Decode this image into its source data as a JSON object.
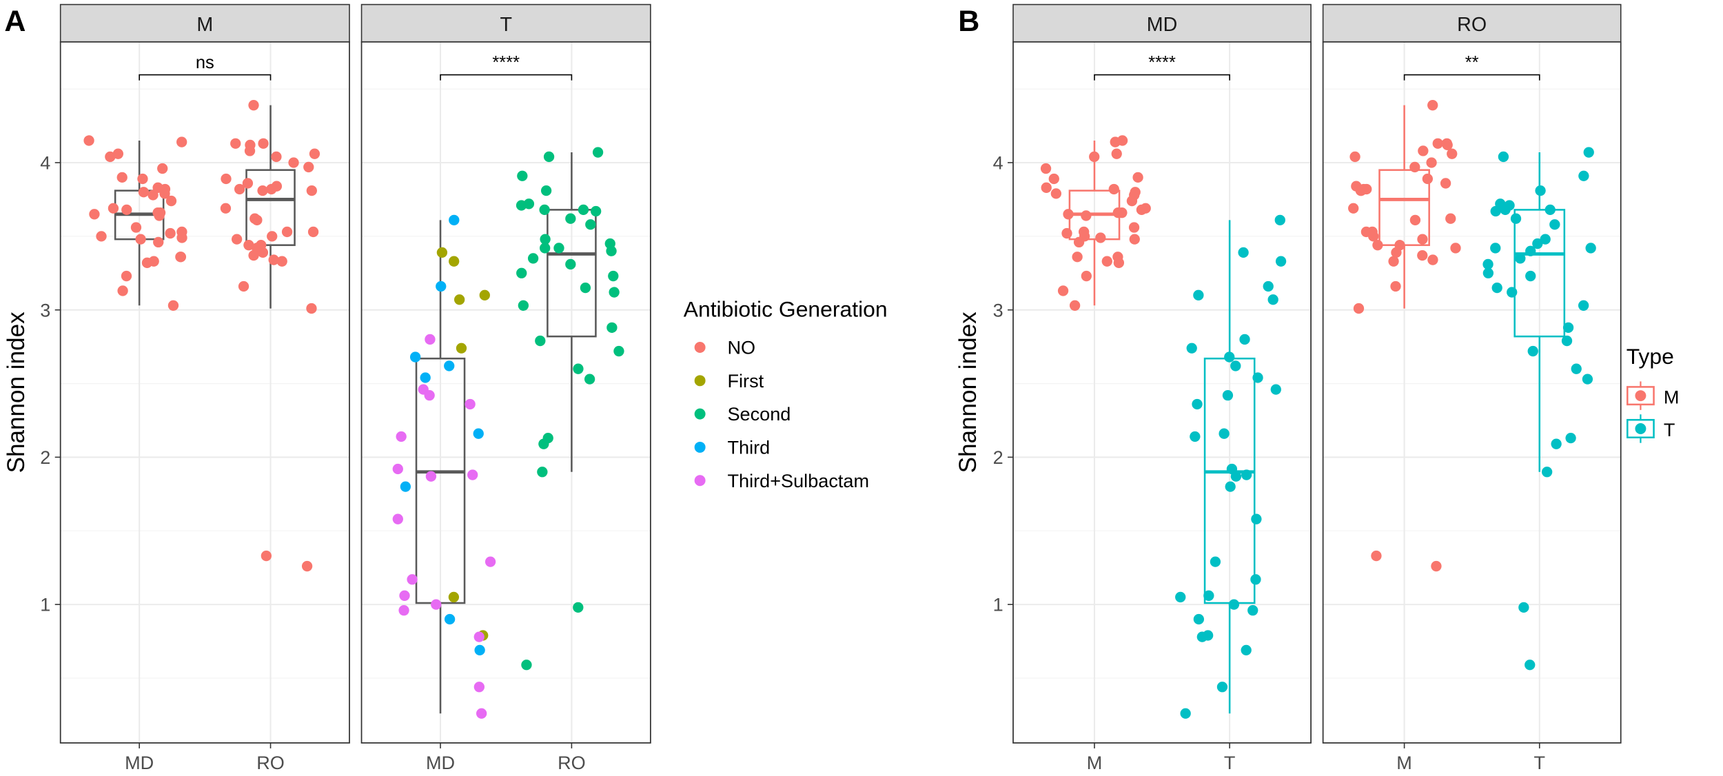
{
  "chart_data": [
    {
      "panel_tag": "A",
      "type": "boxplot+jitter",
      "ylabel": "Shannon index",
      "yticks": [
        1,
        2,
        3,
        4
      ],
      "ylim": [
        0.06,
        4.82
      ],
      "grid": true,
      "legend": {
        "title": "Antibiotic Generation",
        "placement": "right",
        "entries": [
          {
            "label": "NO",
            "color": "#F8766D"
          },
          {
            "label": "First",
            "color": "#A3A500"
          },
          {
            "label": "Second",
            "color": "#00BF7D"
          },
          {
            "label": "Third",
            "color": "#00B0F6"
          },
          {
            "label": "Third+Sulbactam",
            "color": "#E76BF3"
          }
        ]
      },
      "box_color": "#595959",
      "facets": [
        {
          "strip": "M",
          "categories": [
            "MD",
            "RO"
          ],
          "significance": "ns",
          "groups": [
            {
              "category": "MD",
              "box": {
                "lower_whisker": 3.03,
                "q1": 3.48,
                "median": 3.65,
                "q3": 3.81,
                "upper_whisker": 4.15
              },
              "points": [
                {
                  "v": 4.15,
                  "g": "NO"
                },
                {
                  "v": 4.14,
                  "g": "NO"
                },
                {
                  "v": 4.06,
                  "g": "NO"
                },
                {
                  "v": 4.04,
                  "g": "NO"
                },
                {
                  "v": 3.96,
                  "g": "NO"
                },
                {
                  "v": 3.89,
                  "g": "NO"
                },
                {
                  "v": 3.9,
                  "g": "NO"
                },
                {
                  "v": 3.79,
                  "g": "NO"
                },
                {
                  "v": 3.82,
                  "g": "NO"
                },
                {
                  "v": 3.8,
                  "g": "NO"
                },
                {
                  "v": 3.83,
                  "g": "NO"
                },
                {
                  "v": 3.78,
                  "g": "NO"
                },
                {
                  "v": 3.74,
                  "g": "NO"
                },
                {
                  "v": 3.69,
                  "g": "NO"
                },
                {
                  "v": 3.68,
                  "g": "NO"
                },
                {
                  "v": 3.66,
                  "g": "NO"
                },
                {
                  "v": 3.64,
                  "g": "NO"
                },
                {
                  "v": 3.65,
                  "g": "NO"
                },
                {
                  "v": 3.66,
                  "g": "NO"
                },
                {
                  "v": 3.56,
                  "g": "NO"
                },
                {
                  "v": 3.53,
                  "g": "NO"
                },
                {
                  "v": 3.52,
                  "g": "NO"
                },
                {
                  "v": 3.5,
                  "g": "NO"
                },
                {
                  "v": 3.48,
                  "g": "NO"
                },
                {
                  "v": 3.49,
                  "g": "NO"
                },
                {
                  "v": 3.46,
                  "g": "NO"
                },
                {
                  "v": 3.33,
                  "g": "NO"
                },
                {
                  "v": 3.32,
                  "g": "NO"
                },
                {
                  "v": 3.36,
                  "g": "NO"
                },
                {
                  "v": 3.36,
                  "g": "NO"
                },
                {
                  "v": 3.23,
                  "g": "NO"
                },
                {
                  "v": 3.13,
                  "g": "NO"
                },
                {
                  "v": 3.03,
                  "g": "NO"
                }
              ]
            },
            {
              "category": "RO",
              "box": {
                "lower_whisker": 3.01,
                "q1": 3.44,
                "median": 3.75,
                "q3": 3.95,
                "upper_whisker": 4.39
              },
              "points": [
                {
                  "v": 4.39,
                  "g": "NO"
                },
                {
                  "v": 4.13,
                  "g": "NO"
                },
                {
                  "v": 4.12,
                  "g": "NO"
                },
                {
                  "v": 4.13,
                  "g": "NO"
                },
                {
                  "v": 4.08,
                  "g": "NO"
                },
                {
                  "v": 4.06,
                  "g": "NO"
                },
                {
                  "v": 4.04,
                  "g": "NO"
                },
                {
                  "v": 4.0,
                  "g": "NO"
                },
                {
                  "v": 3.97,
                  "g": "NO"
                },
                {
                  "v": 3.89,
                  "g": "NO"
                },
                {
                  "v": 3.86,
                  "g": "NO"
                },
                {
                  "v": 3.84,
                  "g": "NO"
                },
                {
                  "v": 3.82,
                  "g": "NO"
                },
                {
                  "v": 3.81,
                  "g": "NO"
                },
                {
                  "v": 3.82,
                  "g": "NO"
                },
                {
                  "v": 3.81,
                  "g": "NO"
                },
                {
                  "v": 3.69,
                  "g": "NO"
                },
                {
                  "v": 3.61,
                  "g": "NO"
                },
                {
                  "v": 3.62,
                  "g": "NO"
                },
                {
                  "v": 3.53,
                  "g": "NO"
                },
                {
                  "v": 3.53,
                  "g": "NO"
                },
                {
                  "v": 3.5,
                  "g": "NO"
                },
                {
                  "v": 3.48,
                  "g": "NO"
                },
                {
                  "v": 3.44,
                  "g": "NO"
                },
                {
                  "v": 3.44,
                  "g": "NO"
                },
                {
                  "v": 3.42,
                  "g": "NO"
                },
                {
                  "v": 3.39,
                  "g": "NO"
                },
                {
                  "v": 3.37,
                  "g": "NO"
                },
                {
                  "v": 3.34,
                  "g": "NO"
                },
                {
                  "v": 3.33,
                  "g": "NO"
                },
                {
                  "v": 3.16,
                  "g": "NO"
                },
                {
                  "v": 3.01,
                  "g": "NO"
                },
                {
                  "v": 1.33,
                  "g": "NO"
                },
                {
                  "v": 1.26,
                  "g": "NO"
                }
              ]
            }
          ]
        },
        {
          "strip": "T",
          "categories": [
            "MD",
            "RO"
          ],
          "significance": "****",
          "groups": [
            {
              "category": "MD",
              "box": {
                "lower_whisker": 0.26,
                "q1": 1.01,
                "median": 1.9,
                "q3": 2.67,
                "upper_whisker": 3.61
              },
              "points": [
                {
                  "v": 3.61,
                  "g": "Third"
                },
                {
                  "v": 3.33,
                  "g": "First"
                },
                {
                  "v": 3.39,
                  "g": "First"
                },
                {
                  "v": 3.16,
                  "g": "Third"
                },
                {
                  "v": 3.07,
                  "g": "First"
                },
                {
                  "v": 3.1,
                  "g": "First"
                },
                {
                  "v": 2.8,
                  "g": "Third+Sulbactam"
                },
                {
                  "v": 2.74,
                  "g": "First"
                },
                {
                  "v": 2.68,
                  "g": "Third"
                },
                {
                  "v": 2.62,
                  "g": "Third"
                },
                {
                  "v": 2.54,
                  "g": "Third"
                },
                {
                  "v": 2.46,
                  "g": "Third+Sulbactam"
                },
                {
                  "v": 2.42,
                  "g": "Third+Sulbactam"
                },
                {
                  "v": 2.36,
                  "g": "Third+Sulbactam"
                },
                {
                  "v": 2.16,
                  "g": "Third"
                },
                {
                  "v": 2.14,
                  "g": "Third+Sulbactam"
                },
                {
                  "v": 1.88,
                  "g": "Third+Sulbactam"
                },
                {
                  "v": 1.92,
                  "g": "Third+Sulbactam"
                },
                {
                  "v": 1.87,
                  "g": "Third+Sulbactam"
                },
                {
                  "v": 1.8,
                  "g": "Third"
                },
                {
                  "v": 1.58,
                  "g": "Third+Sulbactam"
                },
                {
                  "v": 1.29,
                  "g": "Third+Sulbactam"
                },
                {
                  "v": 1.17,
                  "g": "Third+Sulbactam"
                },
                {
                  "v": 1.05,
                  "g": "First"
                },
                {
                  "v": 1.06,
                  "g": "Third+Sulbactam"
                },
                {
                  "v": 1.0,
                  "g": "Third+Sulbactam"
                },
                {
                  "v": 0.9,
                  "g": "Third"
                },
                {
                  "v": 0.96,
                  "g": "Third+Sulbactam"
                },
                {
                  "v": 0.79,
                  "g": "First"
                },
                {
                  "v": 0.78,
                  "g": "Third+Sulbactam"
                },
                {
                  "v": 0.69,
                  "g": "Third"
                },
                {
                  "v": 0.44,
                  "g": "Third+Sulbactam"
                },
                {
                  "v": 0.26,
                  "g": "Third+Sulbactam"
                }
              ]
            },
            {
              "category": "RO",
              "box": {
                "lower_whisker": 1.9,
                "q1": 2.82,
                "median": 3.38,
                "q3": 3.68,
                "upper_whisker": 4.07
              },
              "points": [
                {
                  "v": 4.07,
                  "g": "Second"
                },
                {
                  "v": 4.04,
                  "g": "Second"
                },
                {
                  "v": 3.91,
                  "g": "Second"
                },
                {
                  "v": 3.81,
                  "g": "Second"
                },
                {
                  "v": 3.72,
                  "g": "Second"
                },
                {
                  "v": 3.71,
                  "g": "Second"
                },
                {
                  "v": 3.68,
                  "g": "Second"
                },
                {
                  "v": 3.68,
                  "g": "Second"
                },
                {
                  "v": 3.67,
                  "g": "Second"
                },
                {
                  "v": 3.62,
                  "g": "Second"
                },
                {
                  "v": 3.58,
                  "g": "Second"
                },
                {
                  "v": 3.48,
                  "g": "Second"
                },
                {
                  "v": 3.45,
                  "g": "Second"
                },
                {
                  "v": 3.42,
                  "g": "Second"
                },
                {
                  "v": 3.42,
                  "g": "Second"
                },
                {
                  "v": 3.4,
                  "g": "Second"
                },
                {
                  "v": 3.35,
                  "g": "Second"
                },
                {
                  "v": 3.31,
                  "g": "Second"
                },
                {
                  "v": 3.25,
                  "g": "Second"
                },
                {
                  "v": 3.23,
                  "g": "Second"
                },
                {
                  "v": 3.15,
                  "g": "Second"
                },
                {
                  "v": 3.12,
                  "g": "Second"
                },
                {
                  "v": 3.03,
                  "g": "Second"
                },
                {
                  "v": 2.88,
                  "g": "Second"
                },
                {
                  "v": 2.79,
                  "g": "Second"
                },
                {
                  "v": 2.72,
                  "g": "Second"
                },
                {
                  "v": 2.6,
                  "g": "Second"
                },
                {
                  "v": 2.53,
                  "g": "Second"
                },
                {
                  "v": 2.13,
                  "g": "Second"
                },
                {
                  "v": 2.09,
                  "g": "Second"
                },
                {
                  "v": 1.9,
                  "g": "Second"
                },
                {
                  "v": 0.98,
                  "g": "Second"
                },
                {
                  "v": 0.59,
                  "g": "Second"
                }
              ]
            }
          ]
        }
      ]
    },
    {
      "panel_tag": "B",
      "type": "boxplot+jitter",
      "ylabel": "Shannon index",
      "yticks": [
        1,
        2,
        3,
        4
      ],
      "ylim": [
        0.06,
        4.82
      ],
      "grid": true,
      "legend": {
        "title": "Type",
        "placement": "right",
        "entries": [
          {
            "label": "M",
            "color": "#F8766D"
          },
          {
            "label": "T",
            "color": "#00BFC4"
          }
        ]
      },
      "facets": [
        {
          "strip": "MD",
          "categories": [
            "M",
            "T"
          ],
          "significance": "****",
          "groups": [
            {
              "category": "M",
              "source": "A.M.MD"
            },
            {
              "category": "T",
              "source": "A.T.MD"
            }
          ]
        },
        {
          "strip": "RO",
          "categories": [
            "M",
            "T"
          ],
          "significance": "**",
          "groups": [
            {
              "category": "M",
              "source": "A.M.RO"
            },
            {
              "category": "T",
              "source": "A.T.RO"
            }
          ]
        }
      ]
    }
  ]
}
